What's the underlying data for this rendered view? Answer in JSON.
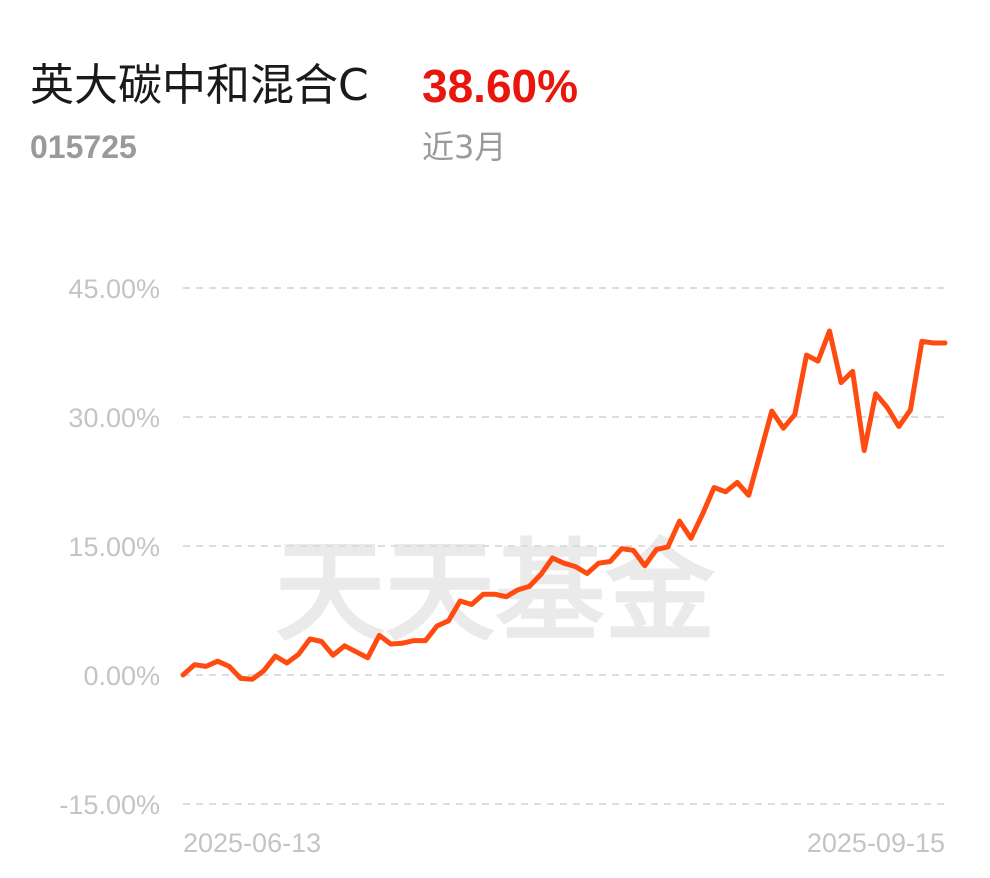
{
  "header": {
    "fund_name": "英大碳中和混合C",
    "fund_code": "015725",
    "return_value": "38.60%",
    "period_label": "近3月"
  },
  "colors": {
    "return_positive": "#e8160c",
    "line": "#ff4a10",
    "grid": "#dddddd"
  },
  "watermark": "天天基金",
  "chart_data": {
    "type": "line",
    "title": "",
    "xlabel": "",
    "ylabel": "",
    "ylim": [
      -15,
      45
    ],
    "ytick_labels": [
      "45.00%",
      "30.00%",
      "15.00%",
      "0.00%",
      "-15.00%"
    ],
    "yticks": [
      45,
      30,
      15,
      0,
      -15
    ],
    "xtick_labels": [
      "2025-06-13",
      "2025-09-15"
    ],
    "grid": true,
    "series": [
      {
        "values": [
          0.0,
          1.2,
          1.0,
          1.6,
          1.0,
          -0.4,
          -0.5,
          0.5,
          2.2,
          1.4,
          2.4,
          4.2,
          3.9,
          2.3,
          3.4,
          2.7,
          2.0,
          4.6,
          3.6,
          3.7,
          4.0,
          4.0,
          5.7,
          6.3,
          8.6,
          8.2,
          9.4,
          9.4,
          9.1,
          9.9,
          10.3,
          11.7,
          13.6,
          13.0,
          12.6,
          11.8,
          13.0,
          13.2,
          14.7,
          14.5,
          12.7,
          14.6,
          14.9,
          17.9,
          15.9,
          18.7,
          21.8,
          21.3,
          22.4,
          20.9,
          25.8,
          30.7,
          28.7,
          30.3,
          37.2,
          36.5,
          40.0,
          34.0,
          35.3,
          26.1,
          32.7,
          31.1,
          28.9,
          30.8,
          38.8,
          38.6,
          38.6
        ]
      }
    ]
  }
}
